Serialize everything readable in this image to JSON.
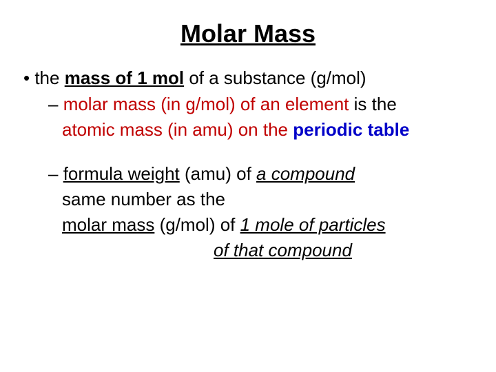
{
  "colors": {
    "red": "#c00000",
    "blue": "#0000c8",
    "black": "#000000",
    "background": "#ffffff"
  },
  "typography": {
    "title_fontsize": 36,
    "body_fontsize": 26,
    "font_family": "Arial"
  },
  "title": "Molar Mass",
  "bullet1": {
    "pre": "the ",
    "underlined_bold": "mass of 1 mol",
    "post": " of a substance (g/mol)"
  },
  "sub1": {
    "dash": "– ",
    "red1": "molar mass",
    "mid1": " (in g/mol) of an element",
    "black1": " is the ",
    "red2": "atomic mass",
    "mid2": " (in amu) on the ",
    "blue1": "periodic table"
  },
  "sub2": {
    "dash": "– ",
    "fw": "formula weight",
    "post_fw": " (amu) of ",
    "compound": "a compound",
    "line2": "same number as the",
    "mm": "molar mass",
    "post_mm": " (g/mol) of ",
    "one_mole": "1 mole of particles",
    "line4": "of that compound"
  }
}
